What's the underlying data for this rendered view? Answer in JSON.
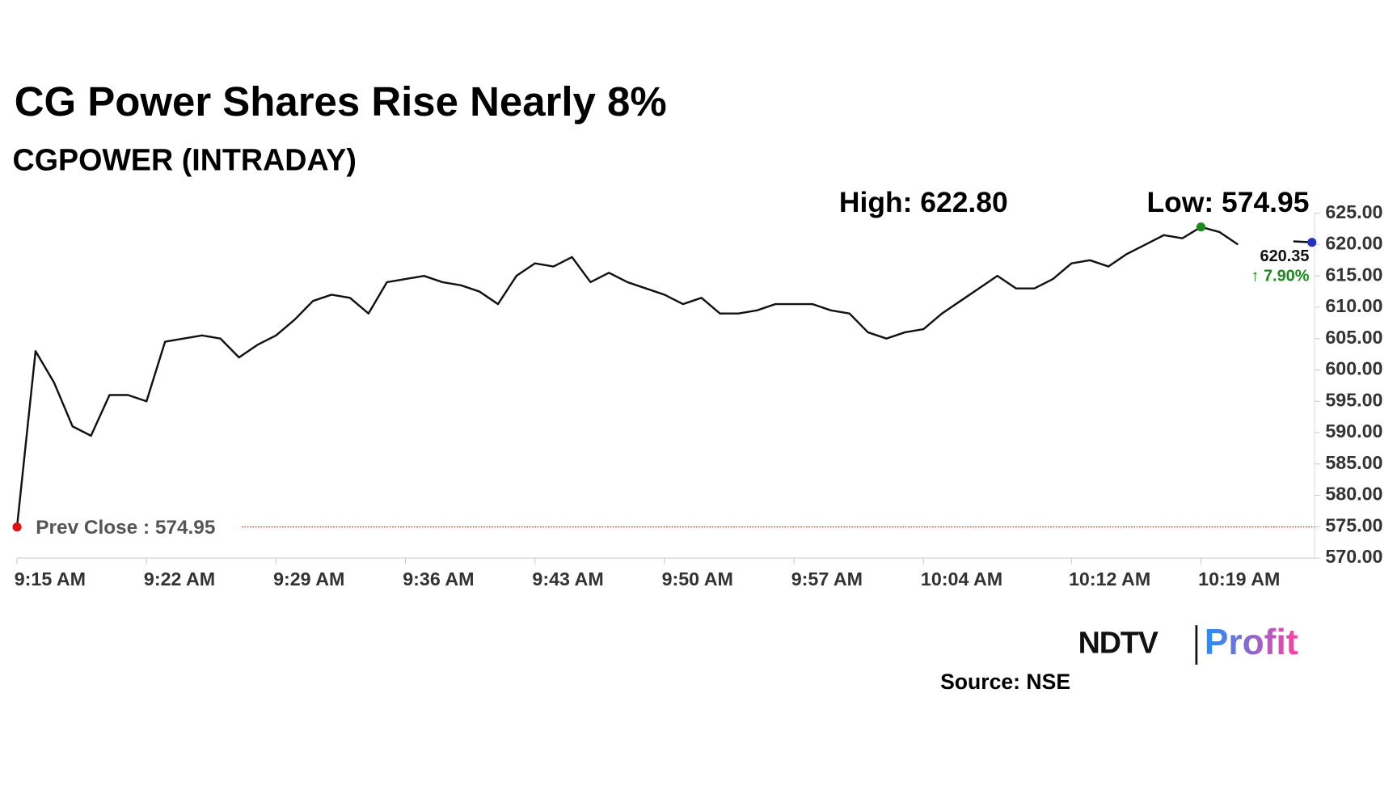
{
  "chart_data": {
    "type": "line",
    "title": "CG Power Shares Rise Nearly 8%",
    "subtitle": "CGPOWER (INTRADAY)",
    "categories": [
      "9:15 AM",
      null,
      null,
      null,
      null,
      null,
      null,
      "9:22 AM",
      null,
      null,
      null,
      null,
      null,
      null,
      "9:29 AM",
      null,
      null,
      null,
      null,
      null,
      null,
      "9:36 AM",
      null,
      null,
      null,
      null,
      null,
      null,
      "9:43 AM",
      null,
      null,
      null,
      null,
      null,
      null,
      "9:50 AM",
      null,
      null,
      null,
      null,
      null,
      null,
      "9:57 AM",
      null,
      null,
      null,
      null,
      null,
      null,
      "10:04 AM",
      null,
      null,
      null,
      null,
      null,
      null,
      null,
      "10:12 AM",
      null,
      null,
      null,
      null,
      null,
      null,
      "10:19 AM",
      null,
      null,
      null,
      null,
      null,
      null
    ],
    "values": [
      574.95,
      603,
      598,
      591,
      589.5,
      596,
      596,
      595,
      604.5,
      605,
      605.5,
      605,
      602,
      604,
      605.5,
      608,
      611,
      612,
      611.5,
      609,
      614,
      614.5,
      615,
      614,
      613.5,
      612.5,
      610.5,
      615,
      617,
      616.5,
      618,
      614,
      615.5,
      614,
      613,
      612,
      610.5,
      611.5,
      609,
      609,
      609.5,
      610.5,
      610.5,
      610.5,
      609.5,
      609,
      606,
      605,
      606,
      606.5,
      609,
      611,
      613,
      615,
      613,
      613,
      614.5,
      617,
      617.5,
      616.5,
      618.5,
      620,
      621.5,
      621,
      622.8,
      622,
      620,
      null,
      null,
      620.5,
      620.35
    ],
    "color": "#111111",
    "ylim": [
      570,
      625
    ],
    "yticks": [
      {
        "value": 570,
        "label": "570.00"
      },
      {
        "value": 575,
        "label": "575.00"
      },
      {
        "value": 580,
        "label": "580.00"
      },
      {
        "value": 585,
        "label": "585.00"
      },
      {
        "value": 590,
        "label": "590.00"
      },
      {
        "value": 595,
        "label": "595.00"
      },
      {
        "value": 600,
        "label": "600.00"
      },
      {
        "value": 605,
        "label": "605.00"
      },
      {
        "value": 610,
        "label": "610.00"
      },
      {
        "value": 615,
        "label": "615.00"
      },
      {
        "value": 620,
        "label": "620.00"
      },
      {
        "value": 625,
        "label": "625.00"
      }
    ],
    "prev_close": 574.95,
    "prev_close_label": "Prev Close : 574.95",
    "prev_close_color": "#e01010",
    "high_label": "High: 622.80",
    "low_label": "Low: 574.95",
    "high_color": "#1a8a1a",
    "last_color": "#2030c0",
    "last_label": "620.35",
    "change_label": "↑ 7.90%",
    "change_color": "#1a8a1a",
    "grid": false
  },
  "footer": {
    "logo_left": "NDTV",
    "logo_right": "Profit",
    "source": "Source: NSE"
  }
}
